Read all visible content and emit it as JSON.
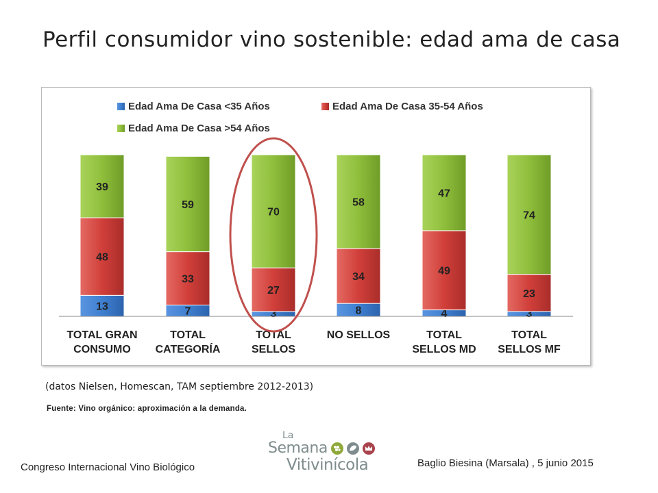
{
  "title": "Perfil consumidor vino sostenible: edad ama de casa",
  "note": "(datos Nielsen, Homescan, TAM septiembre 2012-2013)",
  "source": "Fuente: Vino orgánico: aproximación a la demanda.",
  "footer": {
    "left": "Congreso Internacional Vino Biológico",
    "right": "Baglio Biesina (Marsala) ,  5 junio 2015"
  },
  "logo": {
    "line1": "La",
    "line2": "Semana",
    "line3": "Vitivinícola",
    "icons": [
      "grape-icon",
      "leaf-icon",
      "crown-icon"
    ]
  },
  "chart_data": {
    "type": "bar",
    "stacked": true,
    "categories": [
      [
        "TOTAL GRAN",
        "CONSUMO"
      ],
      [
        "TOTAL",
        "CATEGORÍA"
      ],
      [
        "TOTAL",
        "SELLOS"
      ],
      [
        "NO SELLOS"
      ],
      [
        "TOTAL",
        "SELLOS MD"
      ],
      [
        "TOTAL",
        "SELLOS MF"
      ]
    ],
    "series": [
      {
        "name": "Edad Ama De Casa <35 Años",
        "color": "#3f7fd0",
        "values": [
          13,
          7,
          3,
          8,
          4,
          3
        ]
      },
      {
        "name": "Edad Ama De Casa 35-54 Años",
        "color": "#d13f3a",
        "values": [
          48,
          33,
          27,
          34,
          49,
          23
        ]
      },
      {
        "name": "Edad Ama De Casa >54 Años",
        "color": "#8fbe3c",
        "values": [
          39,
          59,
          70,
          58,
          47,
          74
        ]
      }
    ],
    "ylim": [
      0,
      100
    ],
    "grid": false,
    "legend_position": "top",
    "highlight": {
      "category_index": 2,
      "shape": "ellipse",
      "color": "#c0504d"
    }
  }
}
